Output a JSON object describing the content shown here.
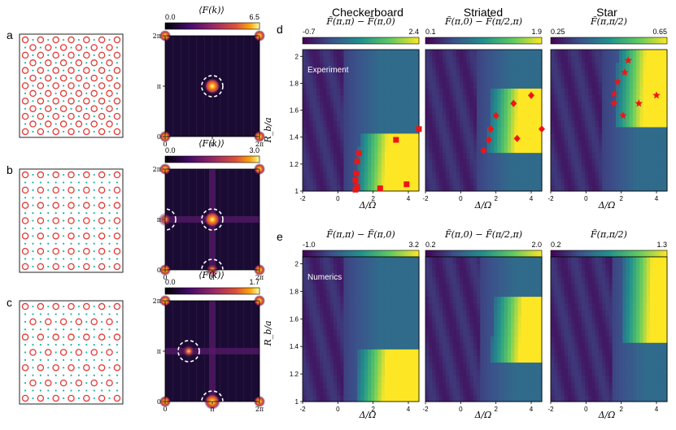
{
  "figure": {
    "panel_letters": [
      "a",
      "b",
      "c",
      "d",
      "e"
    ],
    "column_titles": [
      "Checkerboard",
      "Striated",
      "Star"
    ],
    "row_labels": [
      "Experiment",
      "Numerics"
    ],
    "x_axis_label": "Δ/Ω",
    "y_axis_label": "R_b/a"
  },
  "colors": {
    "lattice_circle": "#e23a36",
    "lattice_dot": "#1fb5a8",
    "marker": "#f01414",
    "dashed_ring": "#ffffff"
  },
  "chart_data": [
    {
      "type": "heatmap",
      "panel": "a",
      "title": "⟨F(k)⟩",
      "colorbar": {
        "min_label": "0.0",
        "max_label": "6.5",
        "range": [
          0.0,
          6.5
        ],
        "colormap": "inferno"
      },
      "xticks": [
        "0",
        "π",
        "2π"
      ],
      "yticks": [
        "0",
        "π",
        "2π"
      ],
      "peaks": [
        {
          "kx": 3.14,
          "ky": 3.14,
          "value": 6.5,
          "ring": true
        }
      ],
      "lattice_pattern": "checkerboard"
    },
    {
      "type": "heatmap",
      "panel": "b",
      "title": "⟨F(k)⟩",
      "colorbar": {
        "min_label": "0.0",
        "max_label": "3.0",
        "range": [
          0.0,
          3.0
        ],
        "colormap": "inferno"
      },
      "xticks": [
        "0",
        "π",
        "2π"
      ],
      "yticks": [
        "0",
        "π",
        "2π"
      ],
      "peaks": [
        {
          "kx": 3.14,
          "ky": 3.14,
          "value": 3.0,
          "ring": true
        },
        {
          "kx": 0,
          "ky": 3.14,
          "value": 2.2,
          "ring": true
        },
        {
          "kx": 3.14,
          "ky": 0,
          "value": 2.2,
          "ring": true
        }
      ],
      "lattice_pattern": "striated"
    },
    {
      "type": "heatmap",
      "panel": "c",
      "title": "⟨F(k)⟩",
      "colorbar": {
        "min_label": "0.0",
        "max_label": "1.7",
        "range": [
          0.0,
          1.7
        ],
        "colormap": "inferno"
      },
      "xticks": [
        "0",
        "π",
        "2π"
      ],
      "yticks": [
        "0",
        "π",
        "2π"
      ],
      "peaks": [
        {
          "kx": 1.57,
          "ky": 3.14,
          "value": 1.2,
          "ring": true
        },
        {
          "kx": 3.14,
          "ky": 0,
          "value": 1.7,
          "ring": true
        }
      ],
      "lattice_pattern": "star"
    },
    {
      "type": "heatmap",
      "panel": "d",
      "column": "Checkerboard",
      "row_label": "Experiment",
      "colorbar_title": "F̃(π,π) − F̃(π,0)",
      "colorbar": {
        "min_label": "-0.7",
        "max_label": "2.4",
        "range": [
          -0.7,
          2.4
        ],
        "colormap": "viridis"
      },
      "xlim": [
        -2,
        4.6
      ],
      "ylim": [
        1.0,
        2.05
      ],
      "xticks": [
        "-2",
        "0",
        "2",
        "4"
      ],
      "yticks": [
        "1",
        "1.2",
        "1.4",
        "1.6",
        "1.8",
        "2"
      ],
      "region": {
        "x0": 1.0,
        "y0": 1.0,
        "y1": 1.42,
        "tilt": 0.6
      },
      "marker": "square",
      "points": [
        [
          1.0,
          1.01
        ],
        [
          1.1,
          1.03
        ],
        [
          1.0,
          1.08
        ],
        [
          1.05,
          1.13
        ],
        [
          1.1,
          1.22
        ],
        [
          1.2,
          1.28
        ],
        [
          3.3,
          1.38
        ],
        [
          4.6,
          1.46
        ],
        [
          2.4,
          1.02
        ],
        [
          3.9,
          1.05
        ]
      ]
    },
    {
      "type": "heatmap",
      "panel": "d",
      "column": "Striated",
      "row_label": "Experiment",
      "colorbar_title": "F̃(π,0) − F̃(π/2,π)",
      "colorbar": {
        "min_label": "0.1",
        "max_label": "1.9",
        "range": [
          0.1,
          1.9
        ],
        "colormap": "viridis"
      },
      "xlim": [
        -2,
        4.6
      ],
      "ylim": [
        1.0,
        2.05
      ],
      "xticks": [
        "-2",
        "0",
        "2",
        "4"
      ],
      "yticks": [],
      "region": {
        "x0": 1.5,
        "y0": 1.28,
        "y1": 1.78,
        "tilt": 0.5
      },
      "marker": "diamond",
      "points": [
        [
          1.3,
          1.3
        ],
        [
          1.6,
          1.38
        ],
        [
          1.7,
          1.46
        ],
        [
          2.0,
          1.56
        ],
        [
          3.0,
          1.65
        ],
        [
          4.0,
          1.71
        ],
        [
          3.2,
          1.39
        ],
        [
          4.6,
          1.46
        ]
      ]
    },
    {
      "type": "heatmap",
      "panel": "d",
      "column": "Star",
      "row_label": "Experiment",
      "colorbar_title": "F̃(π,π/2)",
      "colorbar": {
        "min_label": "0.25",
        "max_label": "0.65",
        "range": [
          0.25,
          0.65
        ],
        "colormap": "viridis"
      },
      "xlim": [
        -2,
        4.6
      ],
      "ylim": [
        1.0,
        2.05
      ],
      "xticks": [
        "-2",
        "0",
        "2",
        "4"
      ],
      "yticks": [],
      "region": {
        "x0": 1.6,
        "y0": 1.5,
        "y1": 2.05,
        "tilt": 0.4
      },
      "marker": "star",
      "points": [
        [
          2.4,
          1.97
        ],
        [
          2.2,
          1.88
        ],
        [
          1.8,
          1.81
        ],
        [
          1.6,
          1.72
        ],
        [
          1.6,
          1.65
        ],
        [
          2.1,
          1.56
        ],
        [
          3.0,
          1.65
        ],
        [
          4.0,
          1.71
        ]
      ]
    },
    {
      "type": "heatmap",
      "panel": "e",
      "column": "Checkerboard",
      "row_label": "Numerics",
      "colorbar_title": "F̃(π,π) − F̃(π,0)",
      "colorbar": {
        "min_label": "-1.0",
        "max_label": "3.2",
        "range": [
          -1.0,
          3.2
        ],
        "colormap": "viridis"
      },
      "xlim": [
        -2,
        4.6
      ],
      "ylim": [
        1.0,
        2.05
      ],
      "xticks": [
        "-2",
        "0",
        "2",
        "4"
      ],
      "yticks": [
        "1",
        "1.2",
        "1.4",
        "1.6",
        "1.8",
        "2"
      ],
      "region": {
        "x0": 1.0,
        "y0": 1.0,
        "y1": 1.38,
        "tilt": 0.5
      }
    },
    {
      "type": "heatmap",
      "panel": "e",
      "column": "Striated",
      "row_label": "Numerics",
      "colorbar_title": "F̃(π,0) − F̃(π/2,π)",
      "colorbar": {
        "min_label": "0.2",
        "max_label": "2.0",
        "range": [
          0.2,
          2.0
        ],
        "colormap": "viridis"
      },
      "xlim": [
        -2,
        4.6
      ],
      "ylim": [
        1.0,
        2.05
      ],
      "xticks": [
        "-2",
        "0",
        "2",
        "4"
      ],
      "yticks": [],
      "region": {
        "x0": 1.7,
        "y0": 1.3,
        "y1": 1.75,
        "tilt": 0.5
      }
    },
    {
      "type": "heatmap",
      "panel": "e",
      "column": "Star",
      "row_label": "Numerics",
      "colorbar_title": "F̃(π,π/2)",
      "colorbar": {
        "min_label": "0.2",
        "max_label": "1.3",
        "range": [
          0.2,
          1.3
        ],
        "colormap": "viridis"
      },
      "xlim": [
        -2,
        4.6
      ],
      "ylim": [
        1.0,
        2.05
      ],
      "xticks": [
        "-2",
        "0",
        "2",
        "4"
      ],
      "yticks": [],
      "region": {
        "x0": 2.0,
        "y0": 1.45,
        "y1": 2.05,
        "tilt": 0.3
      }
    }
  ]
}
